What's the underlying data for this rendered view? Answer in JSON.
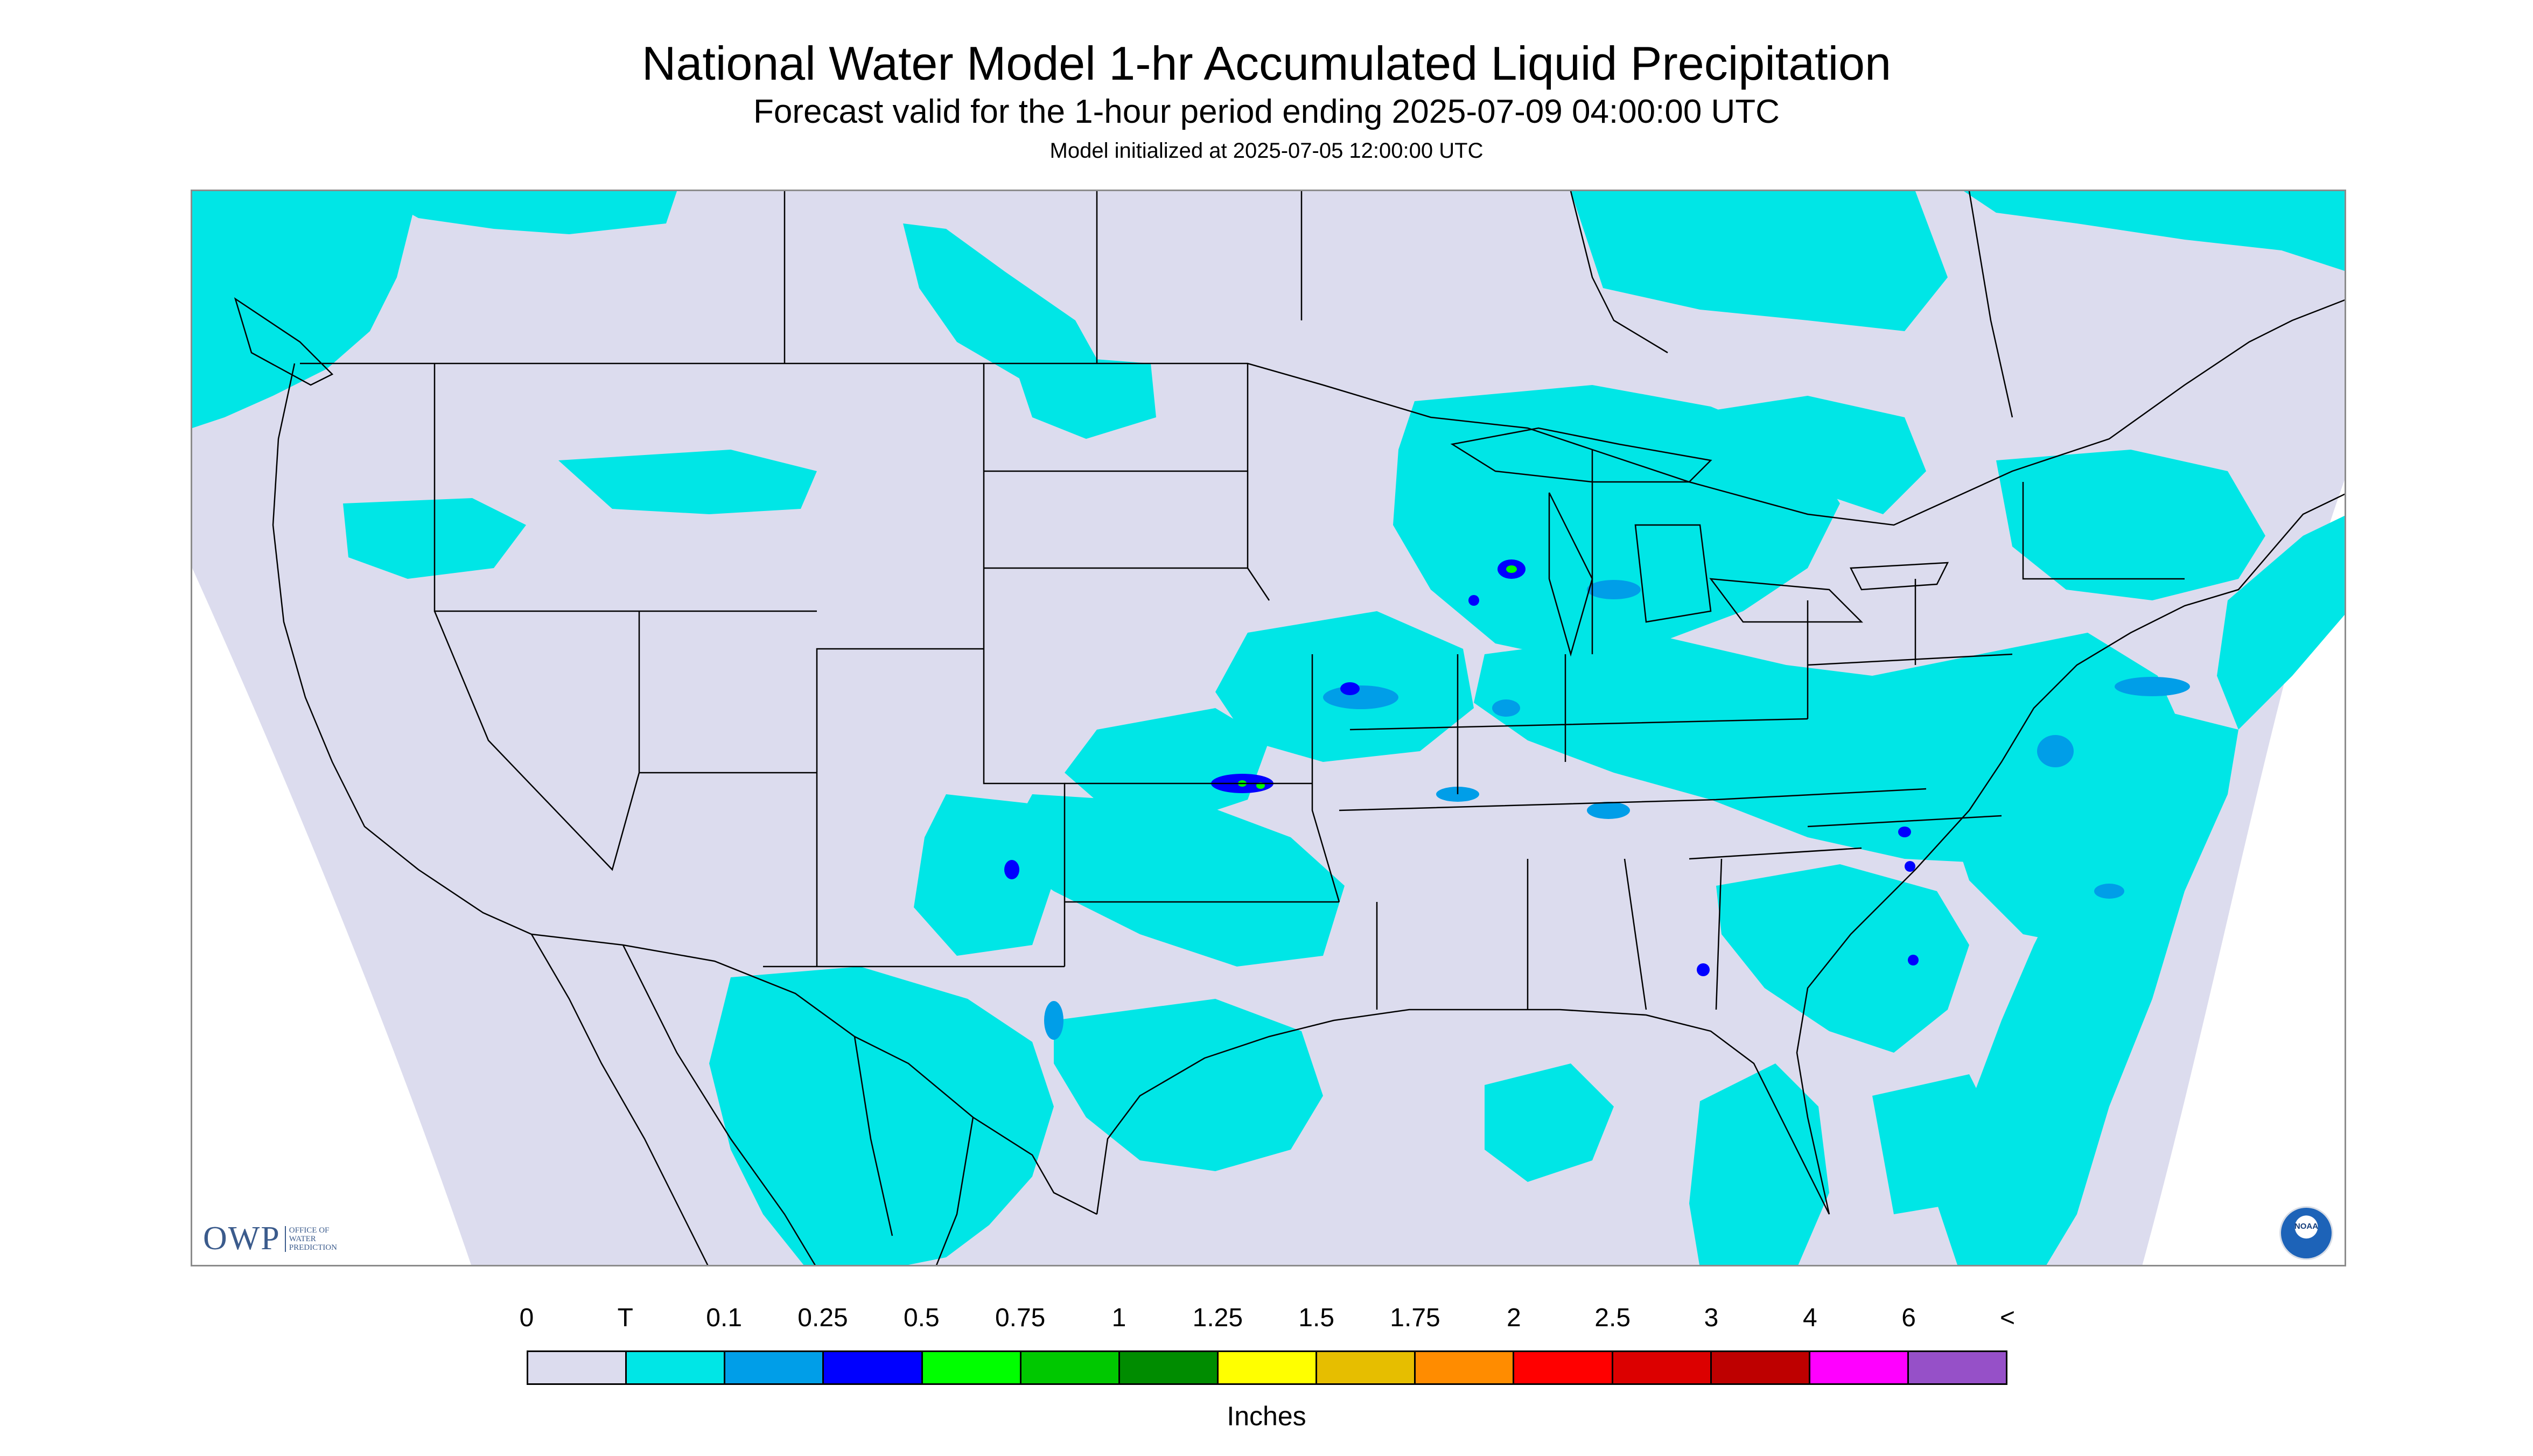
{
  "header": {
    "title": "National Water Model 1-hr Accumulated Liquid Precipitation",
    "subtitle": "Forecast valid for the 1-hour period ending 2025-07-09 04:00:00 UTC",
    "init_line": "Model initialized at 2025-07-05 12:00:00 UTC"
  },
  "logos": {
    "owp_big": "OWP",
    "owp_small": [
      "OFFICE OF",
      "WATER",
      "PREDICTION"
    ],
    "noaa": "NOAA"
  },
  "colors": {
    "background_domain": "#dcdcee",
    "outside_domain": "#ffffff",
    "trace": "#00e6e6",
    "light_blue": "#009ee8",
    "blue": "#0000ff",
    "green": "#00ff00",
    "boundary": "#000000"
  },
  "legend": {
    "tick_labels": [
      "0",
      "T",
      "0.1",
      "0.25",
      "0.5",
      "0.75",
      "1",
      "1.25",
      "1.5",
      "1.75",
      "2",
      "2.5",
      "3",
      "4",
      "6",
      "<"
    ],
    "bins": [
      {
        "color": "#dcdcee"
      },
      {
        "color": "#00e6e6"
      },
      {
        "color": "#009ee8"
      },
      {
        "color": "#0000ff"
      },
      {
        "color": "#00ff00"
      },
      {
        "color": "#00c800"
      },
      {
        "color": "#008c00"
      },
      {
        "color": "#ffff00"
      },
      {
        "color": "#e6be00"
      },
      {
        "color": "#ff8c00"
      },
      {
        "color": "#ff0000"
      },
      {
        "color": "#dc0000"
      },
      {
        "color": "#be0000"
      },
      {
        "color": "#ff00ff"
      },
      {
        "color": "#9650c8"
      }
    ],
    "units": "Inches"
  }
}
